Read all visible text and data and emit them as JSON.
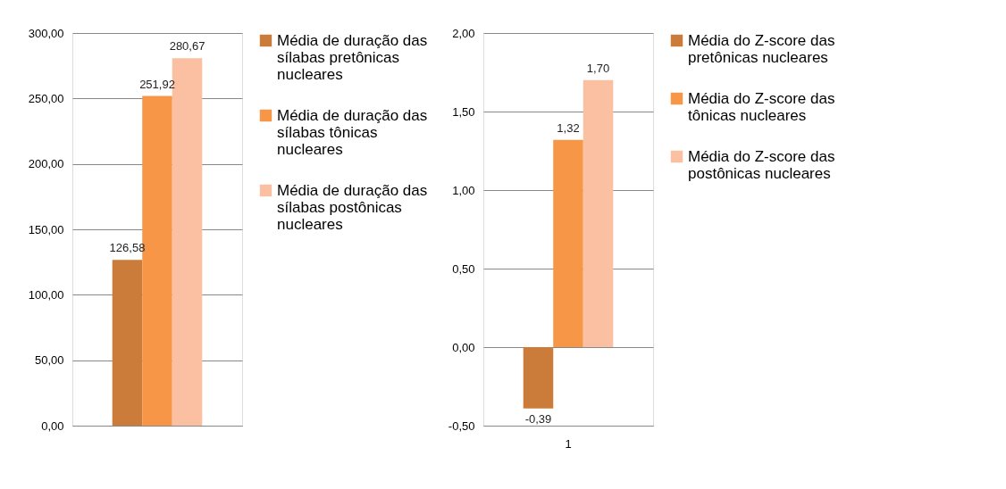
{
  "chart_data": [
    {
      "type": "bar",
      "categories": [
        null
      ],
      "ylim": [
        0,
        300
      ],
      "yticks": [
        {
          "value": 0,
          "label": "0,00"
        },
        {
          "value": 50,
          "label": "50,00"
        },
        {
          "value": 100,
          "label": "100,00"
        },
        {
          "value": 150,
          "label": "150,00"
        },
        {
          "value": 200,
          "label": "200,00"
        },
        {
          "value": 250,
          "label": "250,00"
        },
        {
          "value": 300,
          "label": "300,00"
        }
      ],
      "grid": "y",
      "legend": "right",
      "series": [
        {
          "name": "Média de duração das sílabas pretônicas nucleares",
          "color": "#cc7c3a",
          "values": [
            126.58
          ],
          "value_labels": [
            "126,58"
          ]
        },
        {
          "name": "Média de duração das sílabas tônicas nucleares",
          "color": "#f79646",
          "values": [
            251.92
          ],
          "value_labels": [
            "251,92"
          ]
        },
        {
          "name": "Média de duração das sílabas postônicas nucleares",
          "color": "#fac0a1",
          "values": [
            280.67
          ],
          "value_labels": [
            "280,67"
          ]
        }
      ]
    },
    {
      "type": "bar",
      "categories": [
        "1"
      ],
      "ylim": [
        -0.5,
        2.0
      ],
      "yticks": [
        {
          "value": -0.5,
          "label": "-0,50"
        },
        {
          "value": 0,
          "label": "0,00"
        },
        {
          "value": 0.5,
          "label": "0,50"
        },
        {
          "value": 1.0,
          "label": "1,00"
        },
        {
          "value": 1.5,
          "label": "1,50"
        },
        {
          "value": 2.0,
          "label": "2,00"
        }
      ],
      "grid": "y",
      "legend": "right",
      "series": [
        {
          "name": "Média do Z-score das pretônicas nucleares",
          "color": "#cc7c3a",
          "values": [
            -0.39
          ],
          "value_labels": [
            "-0,39"
          ]
        },
        {
          "name": "Média do Z-score das tônicas nucleares",
          "color": "#f79646",
          "values": [
            1.32
          ],
          "value_labels": [
            "1,32"
          ]
        },
        {
          "name": "Média do Z-score das postônicas nucleares",
          "color": "#fac0a1",
          "values": [
            1.7
          ],
          "value_labels": [
            "1,70"
          ]
        }
      ]
    }
  ]
}
